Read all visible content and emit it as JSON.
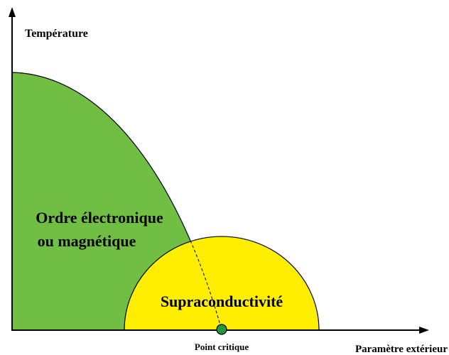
{
  "axes": {
    "y_label": "Température",
    "x_label": "Paramètre extérieur"
  },
  "regions": [
    {
      "label_lines": [
        "Ordre électronique",
        "ou magnétique"
      ]
    },
    {
      "label": "Supraconductivité"
    }
  ],
  "critical_point": {
    "label": "Point critique"
  }
}
